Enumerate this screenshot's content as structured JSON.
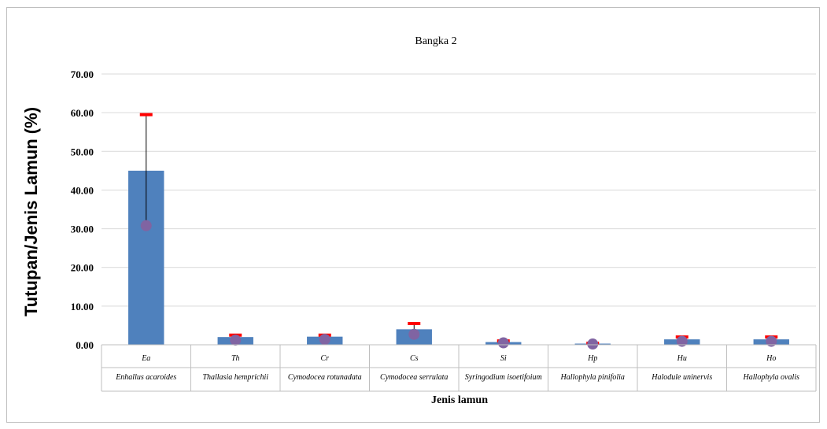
{
  "chart_data": {
    "type": "bar",
    "title": "Bangka 2",
    "ylabel": "Tutupan/Jenis Lamun (%)",
    "xlabel": "Jenis lamun",
    "ylim": [
      0,
      70
    ],
    "yticks": [
      "0.00",
      "10.00",
      "20.00",
      "30.00",
      "40.00",
      "50.00",
      "60.00",
      "70.00"
    ],
    "ytick_values": [
      0,
      10,
      20,
      30,
      40,
      50,
      60,
      70
    ],
    "grid": true,
    "categories": [
      {
        "code": "Ea",
        "name": "Enhallus acaroides"
      },
      {
        "code": "Th",
        "name": "Thallasia hemprichii"
      },
      {
        "code": "Cr",
        "name": "Cymodocea rotunadata"
      },
      {
        "code": "Cs",
        "name": "Cymodocea serrulata"
      },
      {
        "code": "Si",
        "name": "Syringodium isoetifoium"
      },
      {
        "code": "Hp",
        "name": "Hallophyla pinifolia"
      },
      {
        "code": "Hu",
        "name": "Halodule uninervis"
      },
      {
        "code": "Ho",
        "name": "Hallophyla ovalis"
      }
    ],
    "series": [
      {
        "kind": "bar",
        "values": [
          45.0,
          2.0,
          2.1,
          4.0,
          0.7,
          0.3,
          1.4,
          1.4
        ]
      },
      {
        "kind": "error_upper",
        "values": [
          59.5,
          2.5,
          2.5,
          5.5,
          1.0,
          0.4,
          2.0,
          2.0
        ]
      },
      {
        "kind": "marker",
        "values": [
          30.8,
          1.2,
          1.4,
          2.7,
          0.5,
          0.2,
          0.9,
          0.9
        ]
      }
    ],
    "colors": {
      "bar": "#4f81bd",
      "error_cap": "#ff0000",
      "marker": "#8064a2",
      "grid": "#d9d9d9",
      "axis": "#bfbfbf"
    }
  }
}
